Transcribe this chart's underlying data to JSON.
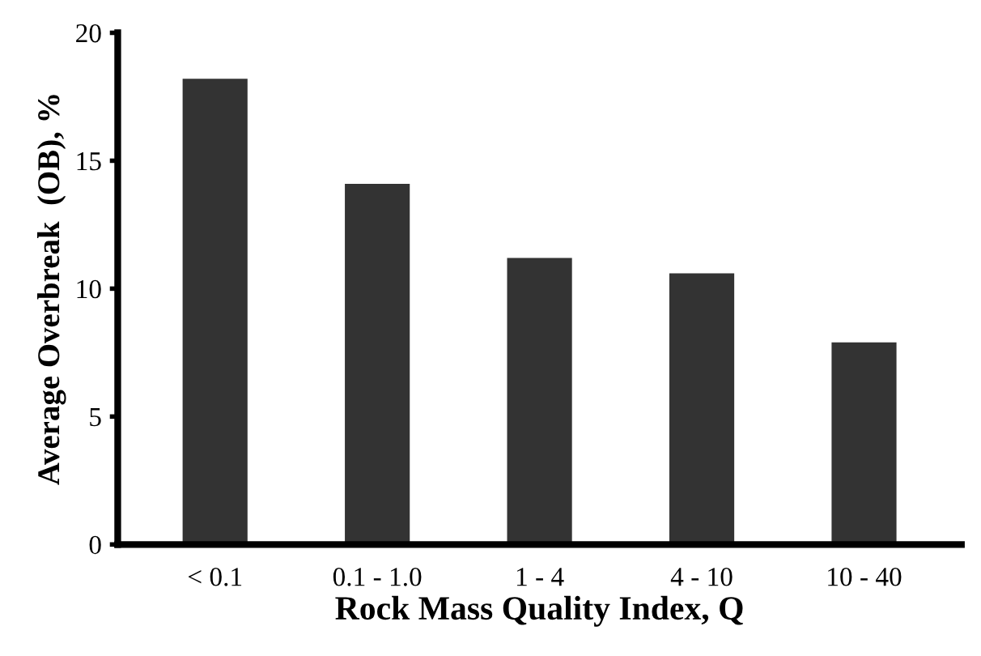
{
  "chart_data": {
    "type": "bar",
    "xlabel": "Rock Mass Quality Index, Q",
    "ylabel": "Average Overbreak  (OB), %",
    "categories": [
      "< 0.1",
      "0.1 - 1.0",
      "1 - 4",
      "4 - 10",
      "10 - 40"
    ],
    "values": [
      18.2,
      14.1,
      11.2,
      10.6,
      7.9
    ],
    "color": "#333333",
    "ylim": [
      0,
      20
    ],
    "yticks": [
      0,
      5,
      10,
      15,
      20
    ],
    "grid": false,
    "legend": false
  }
}
